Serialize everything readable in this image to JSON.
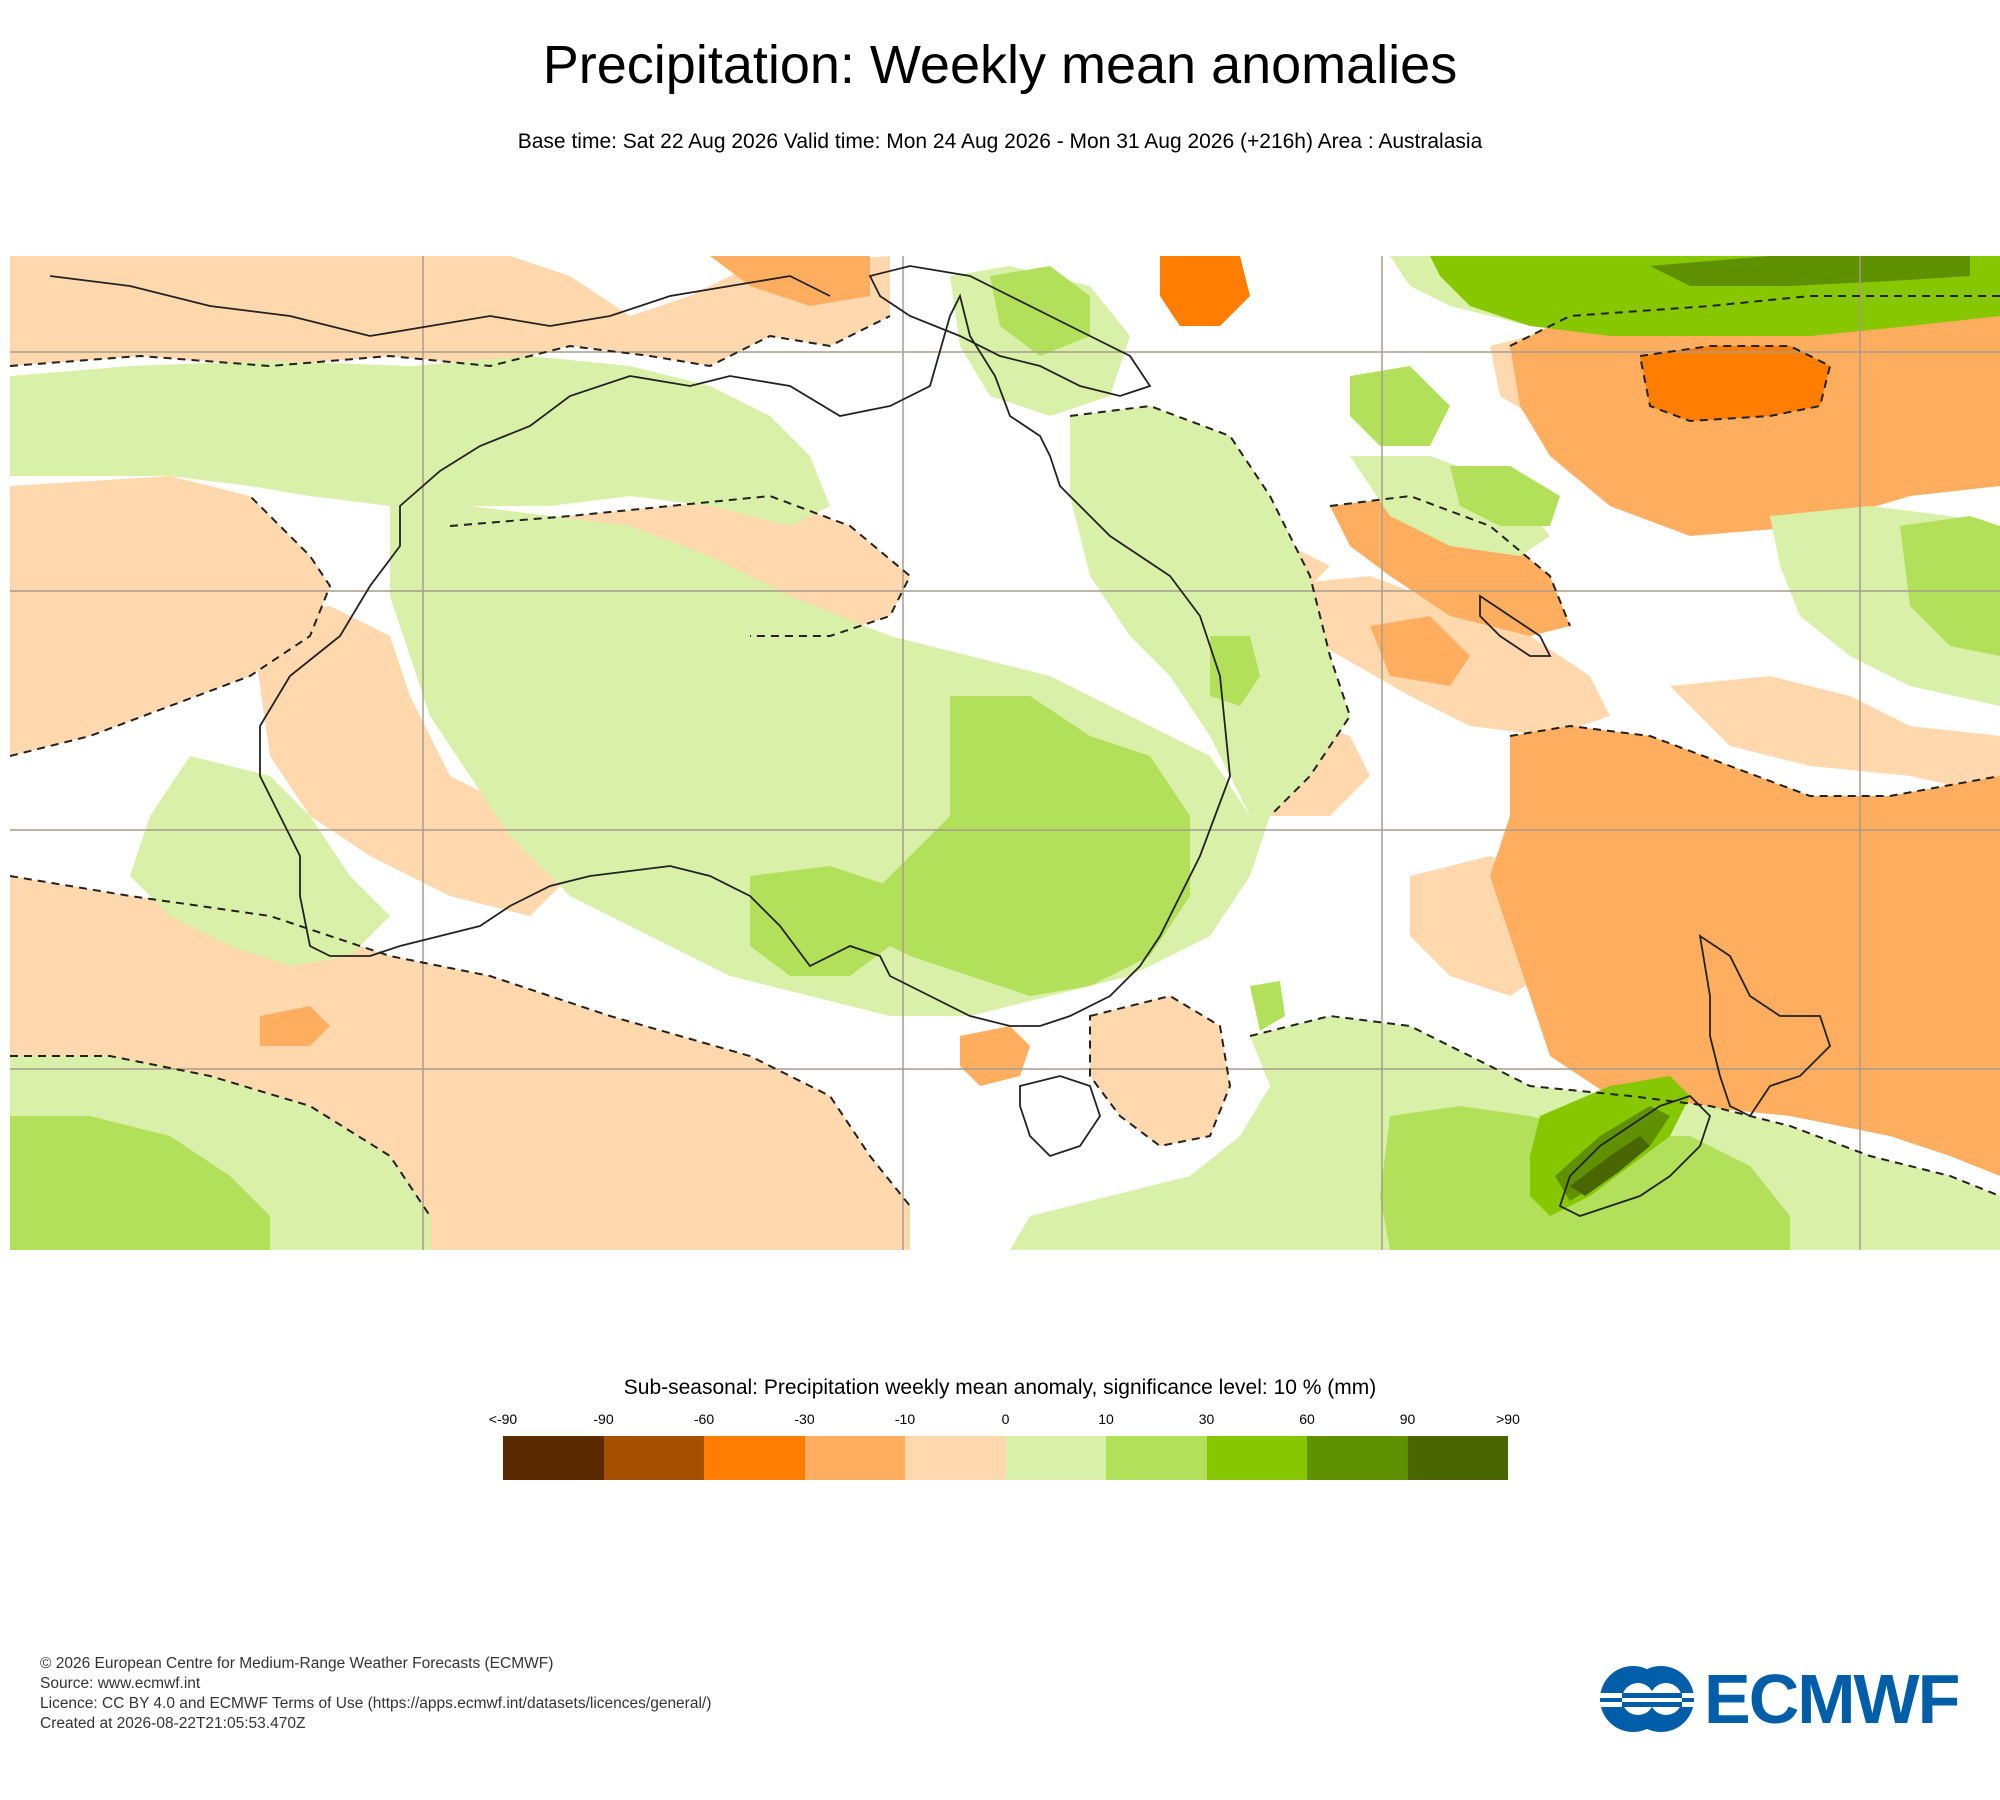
{
  "header": {
    "title": "Precipitation: Weekly mean anomalies",
    "subtitle": "Base time: Sat 22 Aug 2026 Valid time: Mon 24 Aug 2026 - Mon 31 Aug 2026 (+216h) Area : Australasia"
  },
  "map": {
    "area": "Australasia",
    "background_color": "#ffffff",
    "coastline_color": "#222222",
    "grid_color": "#a89c8c",
    "significance_contour_style": "dashed"
  },
  "legend": {
    "title": "Sub-seasonal: Precipitation weekly mean anomaly, significance level: 10 % (mm)",
    "labels": [
      "<-90",
      "-90",
      "-60",
      "-30",
      "-10",
      "0",
      "10",
      "30",
      "60",
      "90",
      ">90"
    ],
    "colors": [
      "#5a2a00",
      "#a54f00",
      "#ff7d00",
      "#ffae5f",
      "#ffd8ae",
      "#d9f0a8",
      "#b2e05a",
      "#86c700",
      "#5f9000",
      "#4a6600"
    ]
  },
  "footer": {
    "copyright": "© 2026 European Centre for Medium-Range Weather Forecasts (ECMWF)",
    "source": "Source: www.ecmwf.int",
    "licence": "Licence: CC BY 4.0 and ECMWF Terms of Use (https://apps.ecmwf.int/datasets/licences/general/)",
    "created": "Created at 2026-08-22T21:05:53.470Z"
  },
  "logo": {
    "text": "ECMWF",
    "color": "#005ea8"
  }
}
